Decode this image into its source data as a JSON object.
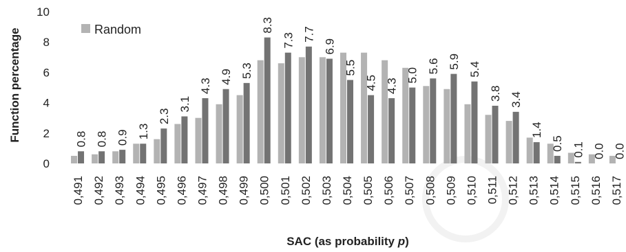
{
  "chart_data": {
    "type": "bar",
    "xlabel": "SAC (as probability p)",
    "xlabel_main": "SAC (as probability ",
    "xlabel_var": "p",
    "xlabel_end": ")",
    "ylabel": "Function percentage",
    "ylim": [
      0,
      10
    ],
    "yticks": [
      "0",
      "2",
      "4",
      "6",
      "8",
      "10"
    ],
    "grid": false,
    "legend_position": "top-left",
    "categories": [
      "0,491",
      "0,492",
      "0,493",
      "0,494",
      "0,495",
      "0,496",
      "0,497",
      "0,498",
      "0,499",
      "0,500",
      "0,501",
      "0,502",
      "0,503",
      "0,504",
      "0,505",
      "0,506",
      "0,507",
      "0,508",
      "0,509",
      "0,510",
      "0,511",
      "0,512",
      "0,513",
      "0,514",
      "0,515",
      "0,516",
      "0,517"
    ],
    "series": [
      {
        "name": "Random",
        "color": "#b3b3b3",
        "values": [
          0.5,
          0.6,
          0.8,
          1.3,
          1.6,
          2.6,
          3.0,
          3.9,
          4.5,
          6.8,
          6.6,
          7.0,
          7.0,
          7.3,
          7.3,
          6.8,
          6.3,
          5.1,
          4.9,
          3.9,
          3.2,
          2.8,
          1.7,
          1.3,
          0.7,
          0.6,
          0.5
        ]
      },
      {
        "color": "#737373",
        "values": [
          0.8,
          0.8,
          0.9,
          1.3,
          2.3,
          3.1,
          4.3,
          4.9,
          5.3,
          8.3,
          7.3,
          7.7,
          6.9,
          5.5,
          4.5,
          4.3,
          5.0,
          5.6,
          5.9,
          5.4,
          3.8,
          3.4,
          1.4,
          0.5,
          0.1,
          0.0,
          0.0
        ],
        "labels": [
          "0.8",
          "0.8",
          "0.9",
          "1.3",
          "2.3",
          "3.1",
          "4.3",
          "4.9",
          "5.3",
          "8.3",
          "7.3",
          "7.7",
          "6.9",
          "5.5",
          "4.5",
          "4.3",
          "5.0",
          "5.6",
          "5.9",
          "5.4",
          "3.8",
          "3.4",
          "1.4",
          "0.5",
          "0.1",
          "0.0",
          "0.0"
        ]
      }
    ]
  }
}
